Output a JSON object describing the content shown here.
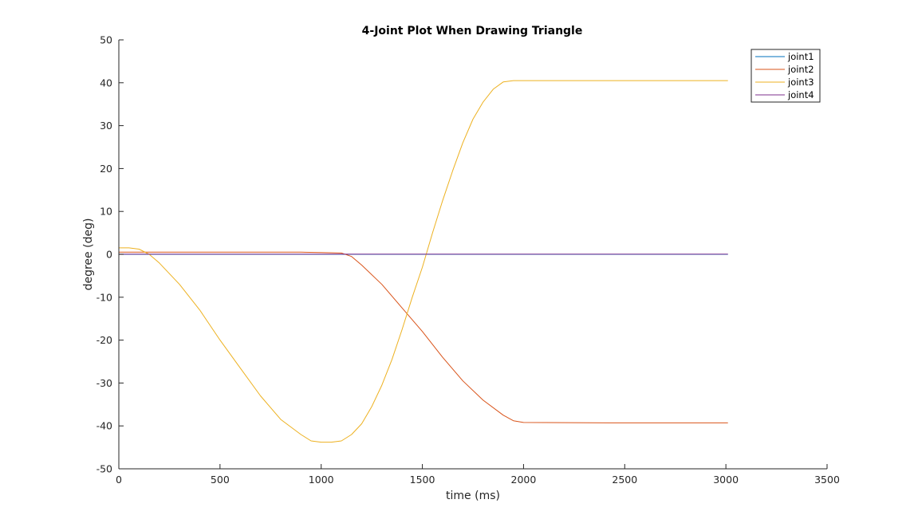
{
  "chart_data": {
    "type": "line",
    "title": "4-Joint Plot When Drawing Triangle",
    "xlabel": "time (ms)",
    "ylabel": "degree (deg)",
    "xlim": [
      0,
      3500
    ],
    "ylim": [
      -50,
      50
    ],
    "xticks": [
      0,
      500,
      1000,
      1500,
      2000,
      2500,
      3000,
      3500
    ],
    "yticks": [
      -50,
      -40,
      -30,
      -20,
      -10,
      0,
      10,
      20,
      30,
      40,
      50
    ],
    "grid": false,
    "legend_position": "top-right",
    "colors": {
      "joint1": "#0072BD",
      "joint2": "#D95319",
      "joint3": "#EDB120",
      "joint4": "#7E2F8E"
    },
    "series": [
      {
        "name": "joint1",
        "x": [
          0,
          500,
          1000,
          1500,
          2000,
          2500,
          3010
        ],
        "y": [
          0,
          0,
          0,
          0,
          0,
          0,
          0
        ]
      },
      {
        "name": "joint2",
        "x": [
          0,
          500,
          900,
          1000,
          1100,
          1150,
          1200,
          1300,
          1400,
          1500,
          1600,
          1700,
          1800,
          1900,
          1950,
          2000,
          2500,
          3010
        ],
        "y": [
          0.5,
          0.5,
          0.5,
          0.4,
          0.3,
          -0.5,
          -2.5,
          -7,
          -12.5,
          -18,
          -24,
          -29.5,
          -34,
          -37.5,
          -38.8,
          -39.2,
          -39.3,
          -39.3
        ]
      },
      {
        "name": "joint3",
        "x": [
          0,
          50,
          100,
          150,
          200,
          300,
          400,
          500,
          600,
          700,
          800,
          900,
          950,
          1000,
          1050,
          1100,
          1150,
          1200,
          1250,
          1300,
          1350,
          1400,
          1450,
          1500,
          1550,
          1600,
          1650,
          1700,
          1750,
          1800,
          1850,
          1900,
          1950,
          2000,
          2500,
          3010
        ],
        "y": [
          1.5,
          1.5,
          1.2,
          0,
          -2,
          -7,
          -13,
          -20,
          -26.5,
          -33,
          -38.5,
          -42,
          -43.5,
          -43.8,
          -43.8,
          -43.5,
          -42,
          -39.5,
          -35.5,
          -30.5,
          -24.5,
          -17.5,
          -10,
          -3,
          5,
          12.5,
          19.5,
          26,
          31.5,
          35.5,
          38.5,
          40.2,
          40.5,
          40.5,
          40.5,
          40.5
        ]
      },
      {
        "name": "joint4",
        "x": [
          0,
          500,
          1000,
          1500,
          2000,
          2500,
          3010
        ],
        "y": [
          0.05,
          0.05,
          0.05,
          0.05,
          0.05,
          0.05,
          0.05
        ]
      }
    ]
  }
}
